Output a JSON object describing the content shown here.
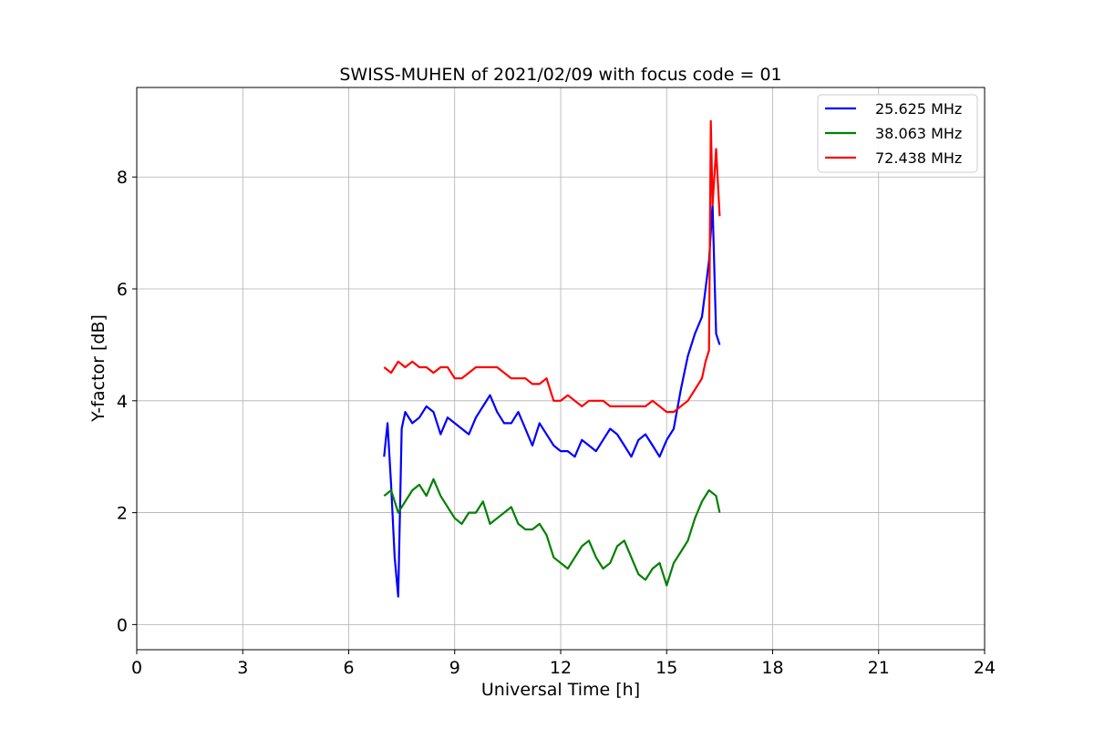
{
  "chart_data": {
    "type": "line",
    "title": "SWISS-MUHEN of 2021/02/09 with focus code = 01",
    "xlabel": "Universal Time [h]",
    "ylabel": "Y-factor [dB]",
    "xlim": [
      0,
      24
    ],
    "ylim": [
      -0.45,
      9.6
    ],
    "xticks": [
      0,
      3,
      6,
      9,
      12,
      15,
      18,
      21,
      24
    ],
    "yticks": [
      0,
      2,
      4,
      6,
      8
    ],
    "xtick_labels": [
      "0",
      "3",
      "6",
      "9",
      "12",
      "15",
      "18",
      "21",
      "24"
    ],
    "ytick_labels": [
      "0",
      "2",
      "4",
      "6",
      "8"
    ],
    "grid": true,
    "legend_position": "top-right",
    "series": [
      {
        "name": "25.625 MHz",
        "color": "#0000ff",
        "x": [
          7.0,
          7.1,
          7.2,
          7.3,
          7.4,
          7.5,
          7.6,
          7.8,
          8.0,
          8.2,
          8.4,
          8.6,
          8.8,
          9.0,
          9.2,
          9.4,
          9.6,
          9.8,
          10.0,
          10.2,
          10.4,
          10.6,
          10.8,
          11.0,
          11.2,
          11.4,
          11.6,
          11.8,
          12.0,
          12.2,
          12.4,
          12.6,
          12.8,
          13.0,
          13.2,
          13.4,
          13.6,
          13.8,
          14.0,
          14.2,
          14.4,
          14.6,
          14.8,
          15.0,
          15.2,
          15.4,
          15.6,
          15.8,
          16.0,
          16.1,
          16.2,
          16.3,
          16.4,
          16.5
        ],
        "y": [
          3.0,
          3.6,
          2.5,
          1.2,
          0.5,
          3.5,
          3.8,
          3.6,
          3.7,
          3.9,
          3.8,
          3.4,
          3.7,
          3.6,
          3.5,
          3.4,
          3.7,
          3.9,
          4.1,
          3.8,
          3.6,
          3.6,
          3.8,
          3.5,
          3.2,
          3.6,
          3.4,
          3.2,
          3.1,
          3.1,
          3.0,
          3.3,
          3.2,
          3.1,
          3.3,
          3.5,
          3.4,
          3.2,
          3.0,
          3.3,
          3.4,
          3.2,
          3.0,
          3.3,
          3.5,
          4.2,
          4.8,
          5.2,
          5.5,
          6.0,
          6.5,
          7.5,
          5.2,
          5.0
        ]
      },
      {
        "name": "38.063 MHz",
        "color": "#008000",
        "x": [
          7.0,
          7.2,
          7.4,
          7.6,
          7.8,
          8.0,
          8.2,
          8.4,
          8.6,
          8.8,
          9.0,
          9.2,
          9.4,
          9.6,
          9.8,
          10.0,
          10.2,
          10.4,
          10.6,
          10.8,
          11.0,
          11.2,
          11.4,
          11.6,
          11.8,
          12.0,
          12.2,
          12.4,
          12.6,
          12.8,
          13.0,
          13.2,
          13.4,
          13.6,
          13.8,
          14.0,
          14.2,
          14.4,
          14.6,
          14.8,
          15.0,
          15.2,
          15.4,
          15.6,
          15.8,
          16.0,
          16.2,
          16.4,
          16.5
        ],
        "y": [
          2.3,
          2.4,
          2.0,
          2.2,
          2.4,
          2.5,
          2.3,
          2.6,
          2.3,
          2.1,
          1.9,
          1.8,
          2.0,
          2.0,
          2.2,
          1.8,
          1.9,
          2.0,
          2.1,
          1.8,
          1.7,
          1.7,
          1.8,
          1.6,
          1.2,
          1.1,
          1.0,
          1.2,
          1.4,
          1.5,
          1.2,
          1.0,
          1.1,
          1.4,
          1.5,
          1.2,
          0.9,
          0.8,
          1.0,
          1.1,
          0.7,
          1.1,
          1.3,
          1.5,
          1.9,
          2.2,
          2.4,
          2.3,
          2.0
        ]
      },
      {
        "name": "72.438 MHz",
        "color": "#ff0000",
        "x": [
          7.0,
          7.2,
          7.4,
          7.6,
          7.8,
          8.0,
          8.2,
          8.4,
          8.6,
          8.8,
          9.0,
          9.2,
          9.4,
          9.6,
          9.8,
          10.0,
          10.2,
          10.4,
          10.6,
          10.8,
          11.0,
          11.2,
          11.4,
          11.6,
          11.8,
          12.0,
          12.2,
          12.4,
          12.6,
          12.8,
          13.0,
          13.2,
          13.4,
          13.6,
          13.8,
          14.0,
          14.2,
          14.4,
          14.6,
          14.8,
          15.0,
          15.2,
          15.4,
          15.6,
          15.8,
          16.0,
          16.1,
          16.2,
          16.25,
          16.3,
          16.4,
          16.5
        ],
        "y": [
          4.6,
          4.5,
          4.7,
          4.6,
          4.7,
          4.6,
          4.6,
          4.5,
          4.6,
          4.6,
          4.4,
          4.4,
          4.5,
          4.6,
          4.6,
          4.6,
          4.6,
          4.5,
          4.4,
          4.4,
          4.4,
          4.3,
          4.3,
          4.4,
          4.0,
          4.0,
          4.1,
          4.0,
          3.9,
          4.0,
          4.0,
          4.0,
          3.9,
          3.9,
          3.9,
          3.9,
          3.9,
          3.9,
          4.0,
          3.9,
          3.8,
          3.8,
          3.9,
          4.0,
          4.2,
          4.4,
          4.7,
          4.9,
          9.0,
          7.5,
          8.5,
          7.3
        ]
      }
    ]
  }
}
